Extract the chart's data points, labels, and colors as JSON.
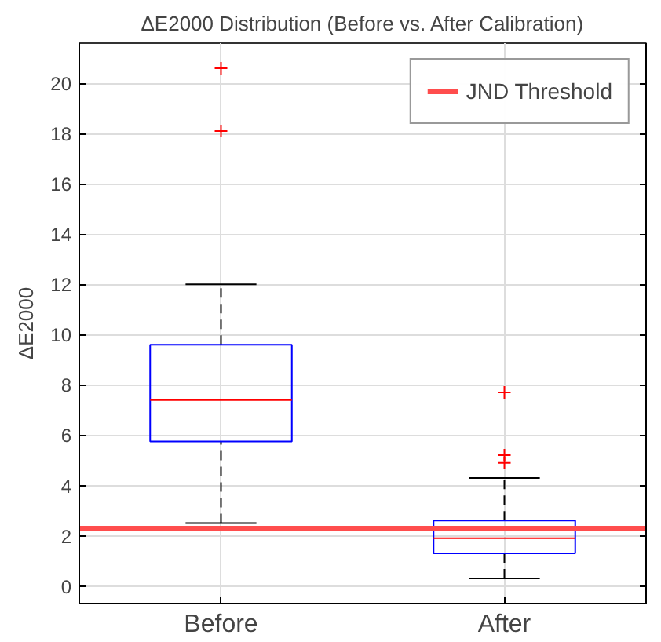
{
  "chart_data": {
    "type": "box",
    "title": "ΔE2000 Distribution (Before vs. After Calibration)",
    "ylabel": "ΔE2000",
    "categories": [
      "Before",
      "After"
    ],
    "boxes": [
      {
        "low": 2.5,
        "q1": 5.75,
        "median": 7.4,
        "q3": 9.6,
        "high": 12.0,
        "outliers": [
          20.6,
          18.1
        ]
      },
      {
        "low": 0.3,
        "q1": 1.3,
        "median": 1.9,
        "q3": 2.6,
        "high": 4.3,
        "outliers": [
          7.7,
          5.2,
          4.9
        ]
      }
    ],
    "color": "#0000ff",
    "ylim": [
      -0.7,
      21.6
    ],
    "yticks": [
      0,
      2,
      4,
      6,
      8,
      10,
      12,
      14,
      16,
      18,
      20
    ],
    "ref_lines": [
      {
        "axis": "y",
        "value": 2.3,
        "label": "JND Threshold",
        "color": "#ff4d4d"
      }
    ],
    "grid": true,
    "legend": "top right",
    "marker": "cross"
  }
}
